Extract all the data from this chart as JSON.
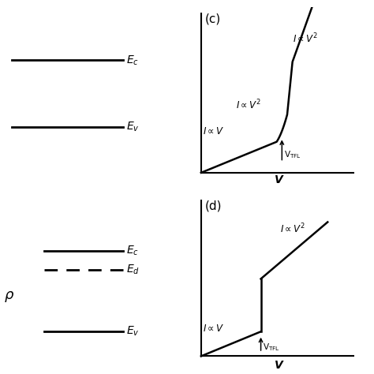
{
  "bg_color": "#ffffff",
  "line_color": "#000000",
  "panel_c_label": "(c)",
  "panel_d_label": "(d)",
  "Ec_label_top": "E$_c$",
  "Ev_label_top": "E$_v$",
  "Ec_label_bot": "E$_c$",
  "Ed_label_bot": "E$_d$",
  "Ev_label_bot": "E$_v$",
  "rho_label": "$\\rho$",
  "xlabel_c": "V",
  "xlabel_d": "V",
  "IalphaV_c": "$I \\propto V$",
  "IalphaV2_mid_c": "$I \\propto V^2$",
  "IalphaV2_top_c": "$I \\propto V^2$",
  "IalphaV_d": "$I \\propto V$",
  "IalphaV2_top_d": "$I \\propto V^2$",
  "VTFL_label": "V$_{\\mathrm{TFL}}$"
}
